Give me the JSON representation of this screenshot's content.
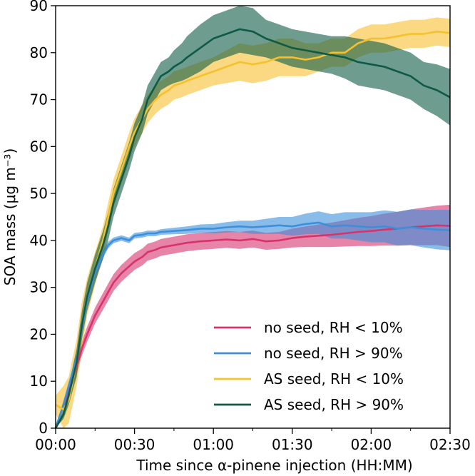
{
  "chart_data": {
    "type": "line",
    "title": "",
    "xlabel": "Time since α-pinene injection (HH:MM)",
    "ylabel": "SOA mass (μg m⁻³)",
    "xlim": [
      0,
      150
    ],
    "ylim": [
      0,
      90
    ],
    "x_ticks": [
      0,
      30,
      60,
      90,
      120,
      150
    ],
    "x_tick_labels": [
      "00:00",
      "00:30",
      "01:00",
      "01:30",
      "02:00",
      "02:30"
    ],
    "y_ticks": [
      0,
      10,
      20,
      30,
      40,
      50,
      60,
      70,
      80,
      90
    ],
    "y_tick_labels": [
      "0",
      "10",
      "20",
      "30",
      "40",
      "50",
      "60",
      "70",
      "80",
      "90"
    ],
    "x_minor_step": 15,
    "legend_position": "lower-right",
    "series": [
      {
        "name": "no seed, RH < 10%",
        "color": "#d6336c",
        "x": [
          0,
          3,
          5,
          8,
          10,
          12,
          15,
          18,
          20,
          22,
          25,
          28,
          30,
          33,
          35,
          38,
          40,
          45,
          50,
          55,
          60,
          65,
          70,
          75,
          80,
          85,
          90,
          95,
          100,
          105,
          110,
          115,
          120,
          125,
          130,
          135,
          140,
          145,
          150
        ],
        "y": [
          0,
          5,
          8,
          13,
          17,
          20,
          24,
          27,
          29,
          31,
          33,
          34.5,
          35.5,
          36.5,
          37.5,
          38,
          38.5,
          39,
          39.5,
          39.8,
          40,
          40.2,
          40,
          40.3,
          39.8,
          40,
          40.5,
          40.8,
          41,
          41.2,
          41.5,
          41.8,
          42,
          42.3,
          42.5,
          42.8,
          43,
          43.2,
          43.1
        ],
        "err": [
          0,
          1,
          1.2,
          1.4,
          1.5,
          1.6,
          1.7,
          1.8,
          1.8,
          1.8,
          1.8,
          1.8,
          1.8,
          1.8,
          1.8,
          1.8,
          1.8,
          1.8,
          1.8,
          1.8,
          1.8,
          1.8,
          1.8,
          1.8,
          1.8,
          1.8,
          2,
          2.2,
          2.4,
          2.6,
          2.8,
          3,
          3.2,
          3.4,
          3.6,
          3.8,
          4,
          4.2,
          4.5
        ]
      },
      {
        "name": "no seed, RH > 90%",
        "color": "#3b8fdb",
        "x": [
          0,
          3,
          5,
          8,
          10,
          12,
          15,
          18,
          20,
          22,
          25,
          28,
          30,
          33,
          35,
          38,
          40,
          45,
          50,
          55,
          60,
          65,
          70,
          75,
          80,
          85,
          90,
          95,
          100,
          105,
          110,
          115,
          120,
          125,
          130,
          135,
          140,
          145,
          150
        ],
        "y": [
          0,
          5,
          9,
          15,
          21,
          27,
          33,
          37,
          39,
          40,
          40.5,
          40,
          41,
          41.2,
          41.5,
          41.5,
          41.8,
          42,
          42.2,
          42.5,
          42.5,
          42.8,
          43,
          42.8,
          43,
          43.2,
          43,
          43.5,
          43.8,
          43,
          43.2,
          43,
          42.8,
          43,
          42.5,
          42.8,
          42.5,
          42.3,
          42.2
        ],
        "err": [
          0,
          1,
          1,
          1,
          1,
          1,
          1,
          0.8,
          0.7,
          0.6,
          0.6,
          0.6,
          0.6,
          0.6,
          0.6,
          0.6,
          0.6,
          0.7,
          0.8,
          0.9,
          1,
          1.1,
          1.2,
          1.4,
          1.6,
          1.8,
          2,
          2.2,
          2.4,
          2.6,
          2.8,
          3,
          3.2,
          3.4,
          3.6,
          3.8,
          4,
          4.2,
          4.3
        ]
      },
      {
        "name": "AS seed, RH < 10%",
        "color": "#f6c02e",
        "x": [
          0,
          3,
          5,
          8,
          10,
          12,
          15,
          18,
          20,
          22,
          25,
          28,
          30,
          33,
          35,
          38,
          40,
          43,
          45,
          48,
          50,
          55,
          60,
          65,
          70,
          75,
          80,
          85,
          90,
          95,
          100,
          105,
          110,
          115,
          120,
          125,
          130,
          135,
          140,
          145,
          150
        ],
        "y": [
          5,
          4,
          6,
          14,
          22,
          28,
          34,
          40,
          45,
          50,
          55,
          60,
          63,
          66,
          68,
          70,
          71,
          72,
          73,
          73.5,
          74,
          75,
          76,
          77,
          78,
          77.5,
          78,
          79,
          79,
          78.5,
          79,
          80,
          80,
          82,
          83,
          83,
          83.5,
          84,
          84,
          84.5,
          84.2
        ],
        "err": [
          2,
          5,
          5,
          5,
          5,
          4,
          3.5,
          3,
          3,
          3,
          3,
          3,
          3,
          3,
          3,
          3,
          3,
          3,
          3,
          3,
          3,
          3,
          3,
          3.5,
          4,
          4,
          4,
          4,
          4,
          3.5,
          3,
          3,
          3,
          3,
          3,
          3,
          3,
          3,
          3,
          3,
          3
        ]
      },
      {
        "name": "AS seed, RH > 90%",
        "color": "#0e5a45",
        "x": [
          0,
          3,
          5,
          8,
          10,
          12,
          15,
          18,
          20,
          22,
          25,
          28,
          30,
          33,
          35,
          38,
          40,
          43,
          45,
          48,
          50,
          55,
          60,
          65,
          70,
          75,
          80,
          85,
          90,
          95,
          100,
          105,
          110,
          115,
          120,
          125,
          130,
          135,
          140,
          145,
          150
        ],
        "y": [
          0,
          3,
          7,
          14,
          22,
          28,
          34,
          39,
          43,
          48,
          53,
          58,
          62,
          66,
          70,
          73,
          75,
          76,
          77,
          78,
          79,
          81,
          83,
          84,
          85,
          84.5,
          83,
          82,
          81,
          80.5,
          80,
          79.5,
          79,
          78,
          77.5,
          77,
          76,
          75,
          73,
          72,
          70.5
        ],
        "err": [
          0,
          1,
          2,
          3,
          3,
          3,
          3,
          3,
          3,
          3,
          3,
          3,
          3,
          3,
          3,
          3,
          3,
          3,
          3.5,
          4,
          4.5,
          5,
          5,
          5,
          5,
          5,
          4,
          4,
          4,
          4,
          4,
          4,
          4.5,
          5,
          5,
          5,
          5,
          5,
          5,
          5.5,
          6
        ]
      }
    ]
  }
}
